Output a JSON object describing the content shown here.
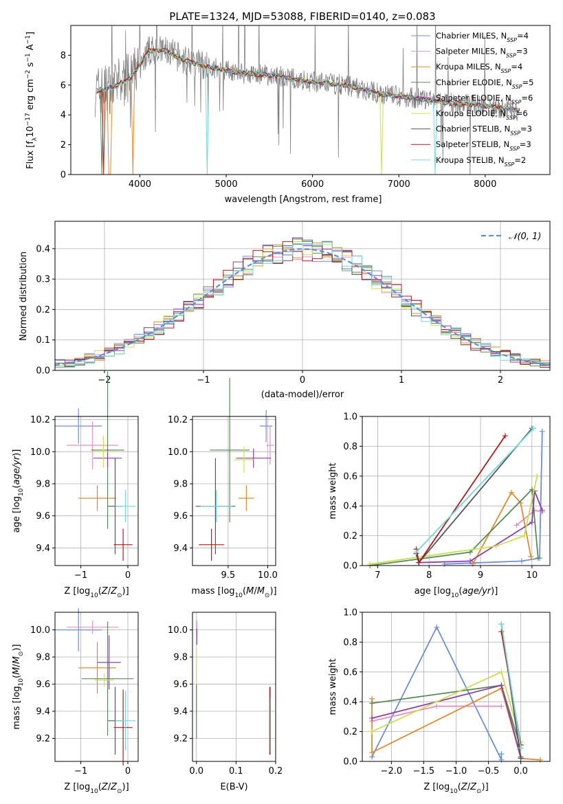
{
  "title": "PLATE=1324, MJD=53088, FIBERID=0140, z=0.083",
  "colors": {
    "chabrier_miles": "#6b8fd9",
    "salpeter_miles": "#e58fc4",
    "kroupa_miles": "#e08a2c",
    "chabrier_elodie": "#5a8a5a",
    "salpeter_elodie": "#8a3fa8",
    "kroupa_elodie": "#c8e050",
    "chabrier_stelib": "#555555",
    "salpeter_stelib": "#b01818",
    "kroupa_stelib": "#70d8d8",
    "normal": "#5b8fd9",
    "data": "#808080"
  },
  "chart_data": [
    {
      "type": "line",
      "id": "spectrum",
      "title": "PLATE=1324, MJD=53088, FIBERID=0140, z=0.083",
      "xlabel": "wavelength [Angstrom, rest frame]",
      "ylabel": "Flux [fλ10⁻¹⁷ erg cm⁻² s⁻¹ A⁻¹]",
      "xlim": [
        3200,
        8750
      ],
      "ylim": [
        0,
        10
      ],
      "xticks": [
        4000,
        5000,
        6000,
        7000,
        8000
      ],
      "yticks": [
        0,
        2,
        4,
        6,
        8
      ],
      "legend_position": "top-right",
      "legend": [
        {
          "key": "chabrier_miles",
          "base": "Chabrier MILES, N",
          "sub": "SSP",
          "value": "=4"
        },
        {
          "key": "salpeter_miles",
          "base": "Salpeter MILES, N",
          "sub": "SSP",
          "value": "=3"
        },
        {
          "key": "kroupa_miles",
          "base": "Kroupa MILES, N",
          "sub": "SSP",
          "value": "=4"
        },
        {
          "key": "chabrier_elodie",
          "base": "Chabrier ELODIE, N",
          "sub": "SSP",
          "value": "=5"
        },
        {
          "key": "salpeter_elodie",
          "base": "Salpeter ELODIE, N",
          "sub": "SSP",
          "value": "=6"
        },
        {
          "key": "kroupa_elodie",
          "base": "Kroupa ELODIE, N",
          "sub": "SSP",
          "value": "=6"
        },
        {
          "key": "chabrier_stelib",
          "base": "Chabrier STELIB, N",
          "sub": "SSP",
          "value": "=3"
        },
        {
          "key": "salpeter_stelib",
          "base": "Salpeter STELIB, N",
          "sub": "SSP",
          "value": "=3"
        },
        {
          "key": "kroupa_stelib",
          "base": "Kroupa STELIB, N",
          "sub": "SSP",
          "value": "=2"
        }
      ],
      "model_trend": [
        [
          3500,
          5.6
        ],
        [
          3700,
          5.9
        ],
        [
          3900,
          6.5
        ],
        [
          4100,
          8.3
        ],
        [
          4300,
          8.3
        ],
        [
          4500,
          7.7
        ],
        [
          4800,
          7.2
        ],
        [
          5200,
          6.8
        ],
        [
          5600,
          6.6
        ],
        [
          6000,
          6.2
        ],
        [
          6400,
          6.0
        ],
        [
          6800,
          5.4
        ],
        [
          7200,
          5.1
        ],
        [
          7600,
          4.8
        ],
        [
          8000,
          4.6
        ],
        [
          8400,
          4.3
        ]
      ]
    },
    {
      "type": "histogram",
      "id": "residuals",
      "xlabel": "(data-model)/error",
      "ylabel": "Normed distribution",
      "xlim": [
        -2.5,
        2.5
      ],
      "ylim": [
        0,
        0.49
      ],
      "xticks": [
        -2,
        -1,
        0,
        1,
        2
      ],
      "yticks": [
        0.0,
        0.1,
        0.2,
        0.3,
        0.4
      ],
      "legend": "𝒩(0, 1)",
      "legend_position": "top-right",
      "bin_width": 0.1
    },
    {
      "type": "scatter",
      "id": "age_vs_z",
      "xlabel": "Z [log10(Z/Z⊙)]",
      "ylabel": "age [log10(age/yr)]",
      "xlim": [
        -1.55,
        0.22
      ],
      "ylim": [
        9.29,
        10.22
      ],
      "xticks": [
        -1,
        0
      ],
      "yticks": [
        9.4,
        9.6,
        9.8,
        10.0,
        10.2
      ],
      "points": [
        {
          "s": "chabrier_miles",
          "x": -1.05,
          "y": 10.16,
          "xe": 0.5,
          "ye": 0.11
        },
        {
          "s": "salpeter_miles",
          "x": -0.75,
          "y": 10.04,
          "xe": 0.55,
          "ye": 0.15
        },
        {
          "s": "kroupa_miles",
          "x": -0.65,
          "y": 9.71,
          "xe": 0.4,
          "ye": 0.08
        },
        {
          "s": "chabrier_elodie",
          "x": -0.43,
          "y": 10.01,
          "xe": 0.35,
          "ye": 0.49
        },
        {
          "s": "salpeter_elodie",
          "x": -0.43,
          "y": 9.96,
          "xe": 0.3,
          "ye": 0.06
        },
        {
          "s": "kroupa_elodie",
          "x": -0.52,
          "y": 10.0,
          "xe": 0.25,
          "ye": 0.1
        },
        {
          "s": "chabrier_stelib",
          "x": -0.27,
          "y": 9.66,
          "xe": 0.15,
          "ye": 0.3
        },
        {
          "s": "salpeter_stelib",
          "x": -0.1,
          "y": 9.42,
          "xe": 0.2,
          "ye": 0.1
        },
        {
          "s": "kroupa_stelib",
          "x": -0.05,
          "y": 9.66,
          "xe": 0.22,
          "ye": 0.1
        }
      ]
    },
    {
      "type": "scatter",
      "id": "age_vs_mass",
      "xlabel": "mass [log10(M/M⊙)]",
      "xlim": [
        9.05,
        10.1
      ],
      "ylim": [
        9.29,
        10.22
      ],
      "xticks": [
        9.5,
        10.0
      ],
      "yticks": [
        9.4,
        9.6,
        9.8,
        10.0,
        10.2
      ],
      "points": [
        {
          "s": "chabrier_miles",
          "x": 9.98,
          "y": 10.16,
          "xe": 0.08,
          "ye": 0.1
        },
        {
          "s": "salpeter_miles",
          "x": 10.03,
          "y": 10.04,
          "xe": 0.05,
          "ye": 0.12
        },
        {
          "s": "kroupa_miles",
          "x": 9.73,
          "y": 9.71,
          "xe": 0.1,
          "ye": 0.08
        },
        {
          "s": "chabrier_elodie",
          "x": 9.52,
          "y": 10.01,
          "xe": 0.25,
          "ye": 0.45
        },
        {
          "s": "salpeter_elodie",
          "x": 9.82,
          "y": 9.96,
          "xe": 0.22,
          "ye": 0.06
        },
        {
          "s": "kroupa_elodie",
          "x": 9.7,
          "y": 9.95,
          "xe": 0.12,
          "ye": 0.08
        },
        {
          "s": "chabrier_stelib",
          "x": 9.34,
          "y": 9.66,
          "xe": 0.25,
          "ye": 0.3
        },
        {
          "s": "salpeter_stelib",
          "x": 9.29,
          "y": 9.42,
          "xe": 0.16,
          "ye": 0.1
        },
        {
          "s": "kroupa_stelib",
          "x": 9.35,
          "y": 9.66,
          "xe": 0.2,
          "ye": 0.1
        }
      ]
    },
    {
      "type": "line",
      "id": "weight_vs_age",
      "xlabel": "age [log10(age/yr)]",
      "ylabel": "mass weight",
      "xlim": [
        6.7,
        10.35
      ],
      "ylim": [
        0,
        1
      ],
      "xticks": [
        7,
        8,
        9,
        10
      ],
      "yticks": [
        0.0,
        0.2,
        0.4,
        0.6,
        0.8,
        1.0
      ],
      "series": [
        {
          "s": "chabrier_miles",
          "points": [
            [
              8.3,
              0.01
            ],
            [
              9.8,
              0.03
            ],
            [
              10.15,
              0.05
            ],
            [
              10.2,
              0.9
            ]
          ]
        },
        {
          "s": "salpeter_miles",
          "points": [
            [
              9.7,
              0.27
            ],
            [
              10.05,
              0.37
            ],
            [
              10.2,
              0.36
            ]
          ]
        },
        {
          "s": "kroupa_miles",
          "points": [
            [
              8.85,
              0.01
            ],
            [
              9.6,
              0.49
            ],
            [
              9.78,
              0.42
            ],
            [
              9.98,
              0.06
            ]
          ]
        },
        {
          "s": "chabrier_elodie",
          "points": [
            [
              6.85,
              0.0
            ],
            [
              8.8,
              0.09
            ],
            [
              10.0,
              0.51
            ],
            [
              10.12,
              0.05
            ]
          ]
        },
        {
          "s": "salpeter_elodie",
          "points": [
            [
              7.8,
              0.02
            ],
            [
              8.8,
              0.03
            ],
            [
              10.0,
              0.29
            ],
            [
              10.05,
              0.5
            ],
            [
              10.2,
              0.37
            ]
          ]
        },
        {
          "s": "kroupa_elodie",
          "points": [
            [
              6.85,
              0.01
            ],
            [
              9.3,
              0.13
            ],
            [
              9.85,
              0.2
            ],
            [
              10.1,
              0.6
            ]
          ]
        },
        {
          "s": "chabrier_stelib",
          "points": [
            [
              7.75,
              0.08
            ],
            [
              7.8,
              0.02
            ],
            [
              10.0,
              0.92
            ]
          ]
        },
        {
          "s": "salpeter_stelib",
          "points": [
            [
              7.75,
              0.11
            ],
            [
              7.8,
              0.02
            ],
            [
              9.48,
              0.87
            ]
          ]
        },
        {
          "s": "kroupa_stelib",
          "points": [
            [
              7.75,
              0.09
            ],
            [
              10.03,
              0.92
            ]
          ]
        }
      ]
    },
    {
      "type": "scatter",
      "id": "mass_vs_z",
      "xlabel": "Z [log10(Z/Z⊙)]",
      "ylabel": "mass [log10(M/M⊙)]",
      "xlim": [
        -1.55,
        0.22
      ],
      "ylim": [
        9.03,
        10.13
      ],
      "xticks": [
        -1,
        0
      ],
      "yticks": [
        9.2,
        9.4,
        9.6,
        9.8,
        10.0
      ],
      "points": [
        {
          "s": "chabrier_miles",
          "x": -1.05,
          "y": 10.0,
          "xe": 0.5,
          "ye": 0.16
        },
        {
          "s": "salpeter_miles",
          "x": -0.75,
          "y": 10.02,
          "xe": 0.55,
          "ye": 0.05
        },
        {
          "s": "kroupa_miles",
          "x": -0.65,
          "y": 9.72,
          "xe": 0.4,
          "ye": 0.19
        },
        {
          "s": "chabrier_elodie",
          "x": -0.43,
          "y": 9.64,
          "xe": 0.55,
          "ye": 0.42
        },
        {
          "s": "salpeter_elodie",
          "x": -0.4,
          "y": 9.76,
          "xe": 0.25,
          "ye": 0.2
        },
        {
          "s": "kroupa_elodie",
          "x": -0.5,
          "y": 9.63,
          "xe": 0.2,
          "ye": 0.05
        },
        {
          "s": "chabrier_stelib",
          "x": -0.27,
          "y": 9.33,
          "xe": 0.15,
          "ye": 0.25
        },
        {
          "s": "salpeter_stelib",
          "x": -0.1,
          "y": 9.28,
          "xe": 0.2,
          "ye": 0.28
        },
        {
          "s": "kroupa_stelib",
          "x": -0.05,
          "y": 9.33,
          "xe": 0.22,
          "ye": 0.22
        }
      ]
    },
    {
      "type": "scatter",
      "id": "mass_vs_ebv",
      "xlabel": "E(B-V)",
      "xlim": [
        -0.01,
        0.2
      ],
      "ylim": [
        9.03,
        10.13
      ],
      "xticks": [
        0.0,
        0.1,
        0.2
      ],
      "yticks": [
        9.2,
        9.4,
        9.6,
        9.8,
        10.0
      ],
      "points": [
        {
          "s": "chabrier_miles",
          "x": 0.001,
          "y": 10.0,
          "xe": 0.0,
          "ye": 0.05
        },
        {
          "s": "salpeter_miles",
          "x": 0.001,
          "y": 10.02,
          "xe": 0.0,
          "ye": 0.05
        },
        {
          "s": "salpeter_elodie",
          "x": 0.001,
          "y": 9.95,
          "xe": 0.0,
          "ye": 0.06
        },
        {
          "s": "kroupa_elodie",
          "x": 0.0,
          "y": 9.62,
          "xe": 0.0,
          "ye": 0.25
        },
        {
          "s": "chabrier_elodie",
          "x": 0.0,
          "y": 9.4,
          "xe": 0.0,
          "ye": 0.2
        },
        {
          "s": "chabrier_stelib",
          "x": 0.185,
          "y": 9.33,
          "xe": 0.0,
          "ye": 0.25
        },
        {
          "s": "salpeter_stelib",
          "x": 0.186,
          "y": 9.33,
          "xe": 0.0,
          "ye": 0.25
        },
        {
          "s": "kroupa_stelib",
          "x": 0.184,
          "y": 9.3,
          "xe": 0.0,
          "ye": 0.2
        }
      ]
    },
    {
      "type": "line",
      "id": "weight_vs_z",
      "xlabel": "Z [log10(Z/Z⊙)]",
      "ylabel": "mass weight",
      "xlim": [
        -2.45,
        0.45
      ],
      "ylim": [
        0,
        1
      ],
      "xticks": [
        -2.0,
        -1.5,
        -1.0,
        -0.5,
        0.0
      ],
      "yticks": [
        0.0,
        0.2,
        0.4,
        0.6,
        0.8,
        1.0
      ],
      "series": [
        {
          "s": "chabrier_miles",
          "points": [
            [
              -2.3,
              0.03
            ],
            [
              -1.3,
              0.9
            ],
            [
              -0.3,
              0.01
            ],
            [
              -0.3,
              0.05
            ]
          ]
        },
        {
          "s": "salpeter_miles",
          "points": [
            [
              -2.3,
              0.27
            ],
            [
              -1.3,
              0.37
            ],
            [
              -0.3,
              0.37
            ]
          ]
        },
        {
          "s": "kroupa_miles",
          "points": [
            [
              -2.3,
              0.42
            ],
            [
              -2.3,
              0.06
            ],
            [
              -0.3,
              0.49
            ],
            [
              0.0,
              0.02
            ],
            [
              0.3,
              0.01
            ]
          ]
        },
        {
          "s": "chabrier_elodie",
          "points": [
            [
              -2.3,
              0.39
            ],
            [
              -0.3,
              0.51
            ],
            [
              0.0,
              0.09
            ]
          ]
        },
        {
          "s": "salpeter_elodie",
          "points": [
            [
              -2.3,
              0.29
            ],
            [
              -0.3,
              0.51
            ],
            [
              0.0,
              0.03
            ]
          ]
        },
        {
          "s": "kroupa_elodie",
          "points": [
            [
              -2.3,
              0.2
            ],
            [
              -0.3,
              0.6
            ],
            [
              0.0,
              0.13
            ]
          ]
        },
        {
          "s": "chabrier_stelib",
          "points": [
            [
              -0.3,
              0.92
            ],
            [
              0.0,
              0.02
            ]
          ]
        },
        {
          "s": "salpeter_stelib",
          "points": [
            [
              -0.3,
              0.87
            ],
            [
              0.0,
              0.11
            ]
          ]
        },
        {
          "s": "kroupa_stelib",
          "points": [
            [
              -0.3,
              0.92
            ],
            [
              0.0,
              0.09
            ]
          ]
        }
      ]
    }
  ]
}
